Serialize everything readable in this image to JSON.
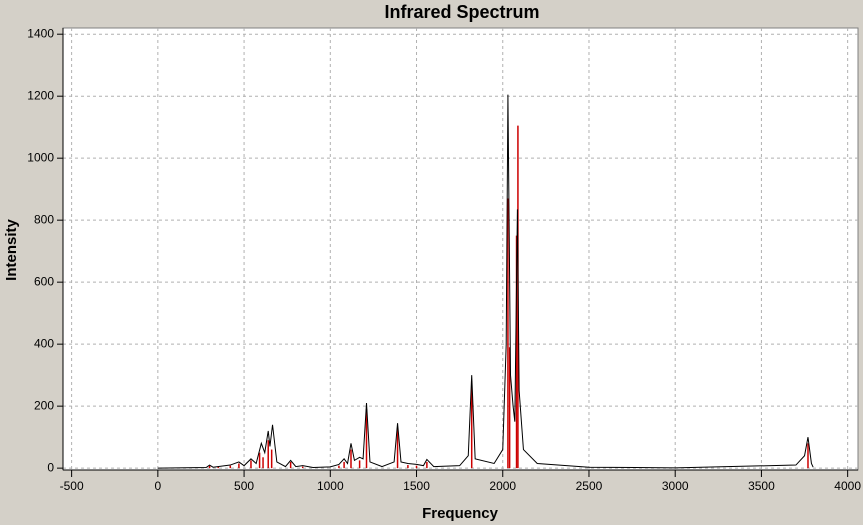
{
  "chart_data": {
    "type": "spectrum",
    "title": "Infrared Spectrum",
    "x_label": "Frequency",
    "y_label": "Intensity",
    "xlim": [
      -550,
      4060
    ],
    "ylim": [
      -6,
      1420
    ],
    "xticks": [
      -500,
      0,
      500,
      1000,
      1500,
      2000,
      2500,
      3000,
      3500,
      4000
    ],
    "yticks": [
      0,
      200,
      400,
      600,
      800,
      1000,
      1200,
      1400
    ],
    "grid": true,
    "series": [
      {
        "style": "sticks",
        "color": "#cc0000",
        "x": [
          300,
          350,
          420,
          470,
          540,
          590,
          610,
          640,
          660,
          770,
          840,
          1050,
          1080,
          1120,
          1170,
          1210,
          1390,
          1450,
          1500,
          1560,
          1820,
          2030,
          2040,
          2080,
          2088,
          3770
        ],
        "values": [
          8,
          5,
          8,
          15,
          25,
          50,
          35,
          90,
          60,
          20,
          5,
          8,
          20,
          60,
          25,
          190,
          130,
          10,
          8,
          20,
          280,
          870,
          390,
          750,
          1105,
          80
        ]
      },
      {
        "style": "line",
        "color": "#000000",
        "x": [
          0,
          280,
          300,
          320,
          420,
          470,
          500,
          540,
          570,
          600,
          620,
          640,
          650,
          665,
          690,
          740,
          770,
          800,
          840,
          900,
          1000,
          1050,
          1080,
          1100,
          1120,
          1140,
          1170,
          1190,
          1210,
          1230,
          1300,
          1370,
          1390,
          1410,
          1450,
          1500,
          1540,
          1560,
          1600,
          1750,
          1800,
          1820,
          1840,
          1950,
          2000,
          2020,
          2030,
          2045,
          2060,
          2070,
          2080,
          2085,
          2095,
          2120,
          2200,
          2500,
          3000,
          3700,
          3750,
          3770,
          3790,
          3800
        ],
        "values": [
          0,
          2,
          10,
          3,
          10,
          20,
          8,
          30,
          15,
          80,
          50,
          120,
          70,
          140,
          20,
          5,
          25,
          5,
          8,
          2,
          4,
          12,
          30,
          15,
          80,
          25,
          35,
          30,
          210,
          20,
          5,
          20,
          145,
          20,
          15,
          12,
          8,
          28,
          5,
          8,
          40,
          300,
          30,
          15,
          60,
          400,
          1205,
          300,
          200,
          150,
          600,
          835,
          250,
          60,
          15,
          3,
          1,
          10,
          40,
          100,
          15,
          3
        ]
      }
    ]
  }
}
